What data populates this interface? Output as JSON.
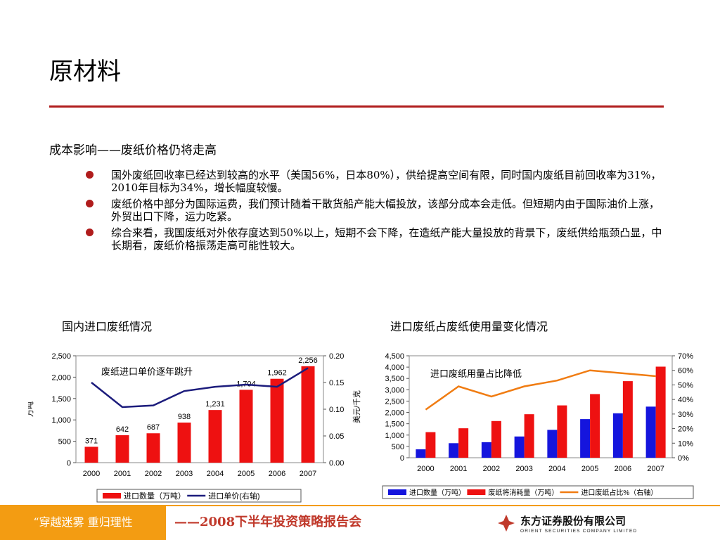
{
  "slide": {
    "title": "原材料",
    "subtitle": "成本影响——废纸价格仍将走高",
    "bullets": [
      "国外废纸回收率已经达到较高的水平（美国56%，日本80%），供给提高空间有限，同时国内废纸目前回收率为31%，2010年目标为34%，增长幅度较慢。",
      "废纸价格中部分为国际运费，我们预计随着干散货船产能大幅投放，该部分成本会走低。但短期内由于国际油价上涨，外贸出口下降，运力吃紧。",
      "综合来看，我国废纸对外依存度达到50%以上，短期不会下降，在造纸产能大量投放的背景下，废纸供给瓶颈凸显，中长期看，废纸价格振荡走高可能性较大。"
    ]
  },
  "chart_data": [
    {
      "type": "bar",
      "title": "国内进口废纸情况",
      "categories": [
        "2000",
        "2001",
        "2002",
        "2003",
        "2004",
        "2005",
        "2006",
        "2007"
      ],
      "series": [
        {
          "name": "进口数量（万吨）",
          "kind": "bar",
          "axis": "left",
          "color": "#ee1111",
          "values": [
            371,
            642,
            687,
            938,
            1231,
            1704,
            1962,
            2256
          ],
          "labels": [
            "371",
            "642",
            "687",
            "938",
            "1,231",
            "1,704",
            "1,962",
            "2,256"
          ]
        },
        {
          "name": "进口单价(右轴)",
          "kind": "line",
          "axis": "right",
          "color": "#1c1c7c",
          "values": [
            0.15,
            0.104,
            0.107,
            0.134,
            0.142,
            0.146,
            0.142,
            0.177
          ]
        }
      ],
      "ylabel": "万吨",
      "ylim": [
        0,
        2500
      ],
      "yticks": [
        "0",
        "500",
        "1,000",
        "1,500",
        "2,000",
        "2,500"
      ],
      "y2lim": [
        0,
        0.2
      ],
      "y2ticks": [
        "0.00",
        "0.05",
        "0.10",
        "0.15",
        "0.20"
      ],
      "annotation": "废纸进口单价逐年跳升",
      "legend": "bottom"
    },
    {
      "type": "bar",
      "title": "进口废纸占废纸使用量变化情况",
      "categories": [
        "2000",
        "2001",
        "2002",
        "2003",
        "2004",
        "2005",
        "2006",
        "2007"
      ],
      "series": [
        {
          "name": "进口数量（万吨）",
          "kind": "bar",
          "axis": "left",
          "color": "#1515dd",
          "values": [
            371,
            642,
            687,
            938,
            1231,
            1704,
            1962,
            2256
          ]
        },
        {
          "name": "废纸将消耗量（万吨）",
          "kind": "bar",
          "axis": "left",
          "color": "#ee1111",
          "values": [
            1130,
            1300,
            1620,
            1920,
            2310,
            2810,
            3380,
            4020
          ]
        },
        {
          "name": "进口废纸占比%（右轴）",
          "kind": "line",
          "axis": "right",
          "color": "#f07c12",
          "values": [
            33,
            49,
            42,
            49,
            53,
            60,
            58,
            56
          ]
        }
      ],
      "ylabel": "美元/千克",
      "ylim": [
        0,
        4500
      ],
      "yticks": [
        "0",
        "500",
        "1,000",
        "1,500",
        "2,000",
        "2,500",
        "3,000",
        "3,500",
        "4,000",
        "4,500"
      ],
      "y2lim": [
        0,
        70
      ],
      "y2ticks": [
        "0%",
        "10%",
        "20%",
        "30%",
        "40%",
        "50%",
        "60%",
        "70%"
      ],
      "annotation": "进口废纸用量占比降低",
      "legend": "bottom"
    }
  ],
  "footer": {
    "left": "“穿越迷雾   重归理性",
    "middle": "——2008下半年投资策略报告会",
    "logo_cn": "东方证券股份有限公司",
    "logo_en": "ORIENT SECURITIES COMPANY LIMITED",
    "accent": "#f39c12"
  }
}
